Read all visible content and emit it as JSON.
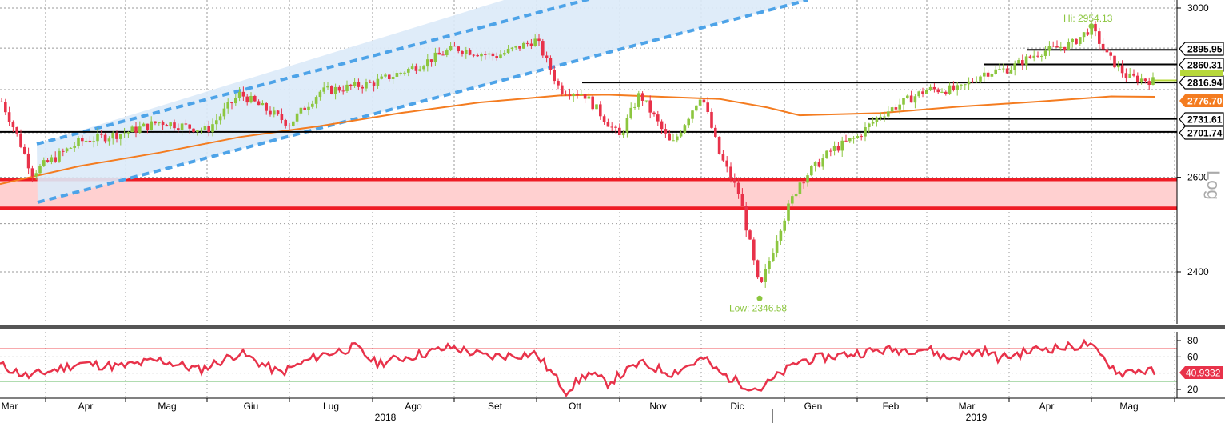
{
  "chart_data": [
    {
      "type": "candlestick",
      "scale": "log",
      "ylim": [
        2300,
        3020
      ],
      "y_ticks": [
        "3000",
        "2600",
        "2400"
      ],
      "axis_side_label": "Log",
      "x_month_labels": [
        "Mar",
        "Apr",
        "Mag",
        "Giu",
        "Lug",
        "Ago",
        "Set",
        "Ott",
        "Nov",
        "Dic",
        "Gen",
        "Feb",
        "Mar",
        "Apr",
        "Mag"
      ],
      "x_year_labels": [
        "2018",
        "2019"
      ],
      "ohlc_monthly_approx": [
        {
          "month": "Mar 2018",
          "close": 2640
        },
        {
          "month": "Apr 2018",
          "close": 2648
        },
        {
          "month": "Mag 2018",
          "close": 2705
        },
        {
          "month": "Giu 2018",
          "close": 2718
        },
        {
          "month": "Lug 2018",
          "close": 2816
        },
        {
          "month": "Ago 2018",
          "close": 2901
        },
        {
          "month": "Set 2018",
          "close": 2913
        },
        {
          "month": "Ott 2018",
          "close": 2711
        },
        {
          "month": "Nov 2018",
          "close": 2760
        },
        {
          "month": "Dic 2018",
          "close": 2506
        },
        {
          "month": "Gen 2019",
          "close": 2704
        },
        {
          "month": "Feb 2019",
          "close": 2784
        },
        {
          "month": "Mar 2019",
          "close": 2834
        },
        {
          "month": "Apr 2019",
          "close": 2945
        },
        {
          "month": "Mag 2019",
          "close": 2822
        }
      ],
      "annotations": [
        {
          "text": "Hi: 2954.13",
          "value": 2954.13,
          "color": "#8cc63f"
        },
        {
          "text": "Low: 2346.58",
          "value": 2346.58,
          "color": "#8cc63f"
        }
      ],
      "horizontal_levels": [
        {
          "label": "2895.95",
          "value": 2895.95,
          "bg": "#ffffff",
          "fg": "#000000"
        },
        {
          "label": "2860.31",
          "value": 2860.31,
          "bg": "#ffffff",
          "fg": "#000000"
        },
        {
          "label": "2816.94",
          "value": 2816.94,
          "bg": "#ffffff",
          "fg": "#000000"
        },
        {
          "label": "2776.70",
          "value": 2776.7,
          "bg": "#f47c20",
          "fg": "#ffffff"
        },
        {
          "label": "2731.61",
          "value": 2731.61,
          "bg": "#ffffff",
          "fg": "#000000"
        },
        {
          "label": "2701.74",
          "value": 2701.74,
          "bg": "#ffffff",
          "fg": "#000000"
        }
      ],
      "support_zone": {
        "low": 2533,
        "high": 2595,
        "color": "#ffd0d0",
        "edge": "#ee1c25"
      },
      "moving_average": {
        "color": "#f47c20"
      },
      "channel": {
        "color": "#4da3e8",
        "fill": "#dbeaf8"
      },
      "up_color": "#8cc63f",
      "down_color": "#e8324a"
    },
    {
      "type": "line",
      "name_hidden": true,
      "ylim": [
        10,
        90
      ],
      "y_ticks": [
        "80",
        "60",
        "20"
      ],
      "last_value_label": "40.9332",
      "reference_lines": [
        {
          "value": 70,
          "color": "#ee1c25"
        },
        {
          "value": 30,
          "color": "#2ca02c"
        }
      ],
      "line_color": "#e8324a"
    }
  ]
}
